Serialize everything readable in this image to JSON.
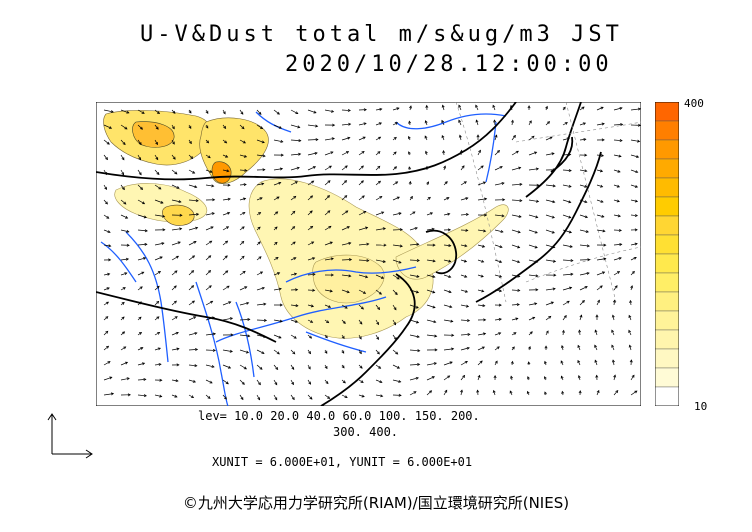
{
  "header": {
    "title": "U-V&Dust total m/s&ug/m3 JST",
    "datetime": "2020/10/28.12:00:00"
  },
  "colorbar": {
    "max_label": "400",
    "min_label": "10",
    "colors": [
      "#ff6600",
      "#ff7f00",
      "#ff9900",
      "#ffaa00",
      "#ffbb00",
      "#ffcc00",
      "#ffd633",
      "#ffe033",
      "#ffe94d",
      "#ffee66",
      "#fff080",
      "#fff399",
      "#fff5ad",
      "#fff8c2",
      "#fffbd6",
      "#ffffff"
    ]
  },
  "levels": {
    "line1": "lev= 10.0 20.0 40.0 60.0 100. 150. 200.",
    "line2": "300. 400."
  },
  "units": {
    "text": "XUNIT = 6.000E+01, YUNIT = 6.000E+01"
  },
  "credit": {
    "text": "©九州大学応用力学研究所(RIAM)/国立環境研究所(NIES)"
  },
  "colors": {
    "river": "#1f5fff",
    "coast": "#000000",
    "dust_light": "#fff6b3",
    "dust_mid": "#ffd84d",
    "dust_high": "#ff9900"
  }
}
